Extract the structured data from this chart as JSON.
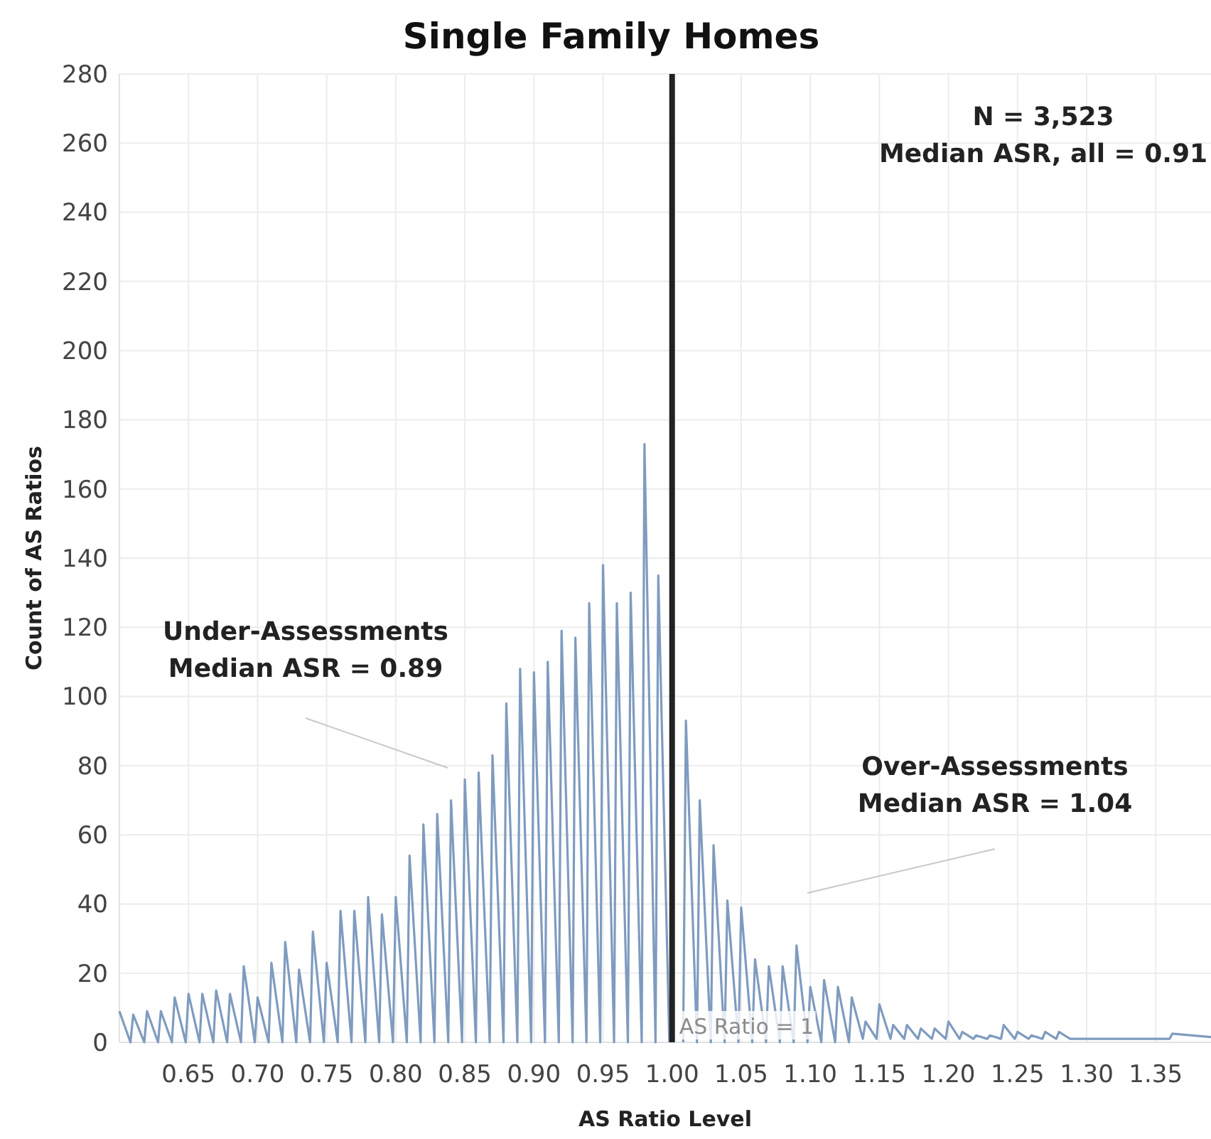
{
  "chart_data": {
    "type": "line",
    "title": "Single Family Homes",
    "xlabel": "AS Ratio Level",
    "ylabel": "Count of AS Ratios",
    "xlim": [
      0.6,
      1.39
    ],
    "xticks": [
      {
        "value": 0.65,
        "label": "0.65"
      },
      {
        "value": 0.7,
        "label": "0.70"
      },
      {
        "value": 0.75,
        "label": "0.75"
      },
      {
        "value": 0.8,
        "label": "0.80"
      },
      {
        "value": 0.85,
        "label": "0.85"
      },
      {
        "value": 0.9,
        "label": "0.90"
      },
      {
        "value": 0.95,
        "label": "0.95"
      },
      {
        "value": 1,
        "label": "1.00"
      },
      {
        "value": 1.05,
        "label": "1.05"
      },
      {
        "value": 1.1,
        "label": "1.10"
      },
      {
        "value": 1.15,
        "label": "1.15"
      },
      {
        "value": 1.2,
        "label": "1.20"
      },
      {
        "value": 1.25,
        "label": "1.25"
      },
      {
        "value": 1.3,
        "label": "1.30"
      },
      {
        "value": 1.35,
        "label": "1.35"
      }
    ],
    "ylim": [
      0,
      280
    ],
    "yticks": [
      0,
      20,
      40,
      60,
      80,
      100,
      120,
      140,
      160,
      180,
      200,
      220,
      240,
      260,
      280
    ],
    "grid": true,
    "marker": "none",
    "line_style": "solid",
    "series": [
      {
        "color": "#7f9bbf",
        "x": [
          0.6,
          0.608,
          0.61,
          0.618,
          0.62,
          0.628,
          0.63,
          0.638,
          0.64,
          0.648,
          0.65,
          0.658,
          0.66,
          0.668,
          0.67,
          0.678,
          0.68,
          0.688,
          0.69,
          0.698,
          0.7,
          0.708,
          0.71,
          0.718,
          0.72,
          0.728,
          0.73,
          0.738,
          0.74,
          0.748,
          0.75,
          0.758,
          0.76,
          0.768,
          0.77,
          0.778,
          0.78,
          0.788,
          0.79,
          0.798,
          0.8,
          0.808,
          0.81,
          0.818,
          0.82,
          0.828,
          0.83,
          0.838,
          0.84,
          0.848,
          0.85,
          0.858,
          0.86,
          0.868,
          0.87,
          0.878,
          0.88,
          0.888,
          0.89,
          0.898,
          0.9,
          0.908,
          0.91,
          0.918,
          0.92,
          0.928,
          0.93,
          0.938,
          0.94,
          0.948,
          0.95,
          0.958,
          0.96,
          0.968,
          0.97,
          0.978,
          0.98,
          0.988,
          0.99,
          0.998,
          1,
          1.008,
          1.01,
          1.018,
          1.02,
          1.028,
          1.03,
          1.038,
          1.04,
          1.048,
          1.05,
          1.058,
          1.06,
          1.068,
          1.07,
          1.078,
          1.08,
          1.088,
          1.09,
          1.098,
          1.1,
          1.108,
          1.11,
          1.118,
          1.12,
          1.128,
          1.13,
          1.138,
          1.14,
          1.148,
          1.15,
          1.158,
          1.16,
          1.168,
          1.17,
          1.178,
          1.18,
          1.188,
          1.19,
          1.198,
          1.2,
          1.208,
          1.21,
          1.218,
          1.22,
          1.228,
          1.23,
          1.238,
          1.24,
          1.248,
          1.25,
          1.258,
          1.26,
          1.268,
          1.27,
          1.278,
          1.28,
          1.288,
          1.36,
          1.362,
          1.39
        ],
        "values": [
          9,
          0,
          8,
          0,
          9,
          0,
          9,
          0,
          13,
          0,
          14,
          0,
          14,
          0,
          15,
          0,
          14,
          0,
          22,
          0,
          13,
          0,
          23,
          0,
          29,
          0,
          21,
          0,
          32,
          0,
          23,
          0,
          38,
          0,
          38,
          0,
          42,
          0,
          37,
          0,
          42,
          0,
          54,
          0,
          63,
          0,
          66,
          0,
          70,
          0,
          76,
          0,
          78,
          0,
          83,
          0,
          98,
          0,
          108,
          0,
          107,
          0,
          110,
          0,
          119,
          0,
          117,
          0,
          127,
          0,
          138,
          0,
          127,
          0,
          130,
          0,
          173,
          0,
          135,
          0,
          null,
          0,
          93,
          0,
          70,
          0,
          57,
          0,
          41,
          0,
          39,
          0,
          24,
          0,
          22,
          0,
          22,
          0,
          28,
          0,
          16,
          0,
          18,
          0,
          16,
          0,
          13,
          1,
          6,
          1,
          11,
          1,
          5,
          1,
          5,
          1,
          4,
          1,
          4,
          1,
          6,
          1,
          3,
          1,
          2,
          1,
          2,
          1,
          5,
          1,
          3,
          1,
          2,
          1,
          3,
          1,
          3,
          1,
          1,
          2.5,
          1.5
        ]
      }
    ],
    "ref_lines": [
      {
        "axis": "x",
        "value": 1,
        "label": "AS Ratio = 1",
        "color": "#222222"
      }
    ],
    "annotations": [
      "N = 3,523\nMedian ASR, all = 0.91",
      "Under-Assessments\nMedian ASR = 0.89",
      "Over-Assessments\nMedian ASR = 1.04"
    ]
  }
}
